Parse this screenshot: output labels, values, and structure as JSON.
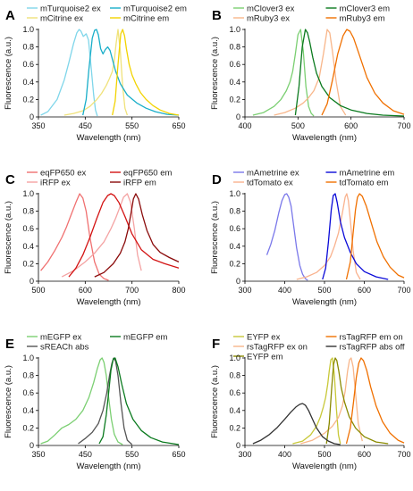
{
  "chart_data": [
    {
      "panel": "A",
      "type": "line",
      "xlabel": "Wavelength (nm)",
      "ylabel": "Fluorescence (a.u.)",
      "xlim": [
        350,
        650
      ],
      "ylim": [
        0,
        1.0
      ],
      "xticks": [
        350,
        450,
        550,
        650
      ],
      "yticks": [
        0,
        0.2,
        0.4,
        0.6,
        0.8,
        1.0
      ],
      "legend_columns": 2,
      "series": [
        {
          "name": "mTurquoise2 ex",
          "color": "#7fd6ea",
          "x": [
            355,
            370,
            390,
            405,
            415,
            425,
            432,
            437,
            441,
            446,
            452,
            457,
            463,
            468,
            472,
            476
          ],
          "y": [
            0.02,
            0.06,
            0.2,
            0.42,
            0.62,
            0.84,
            0.96,
            1.0,
            0.98,
            0.92,
            0.95,
            0.88,
            0.55,
            0.25,
            0.08,
            0.01
          ]
        },
        {
          "name": "mCitrine ex",
          "color": "#f0e27a",
          "x": [
            405,
            425,
            445,
            460,
            475,
            485,
            495,
            502,
            508,
            512,
            516,
            520,
            525,
            530,
            535,
            540
          ],
          "y": [
            0.02,
            0.04,
            0.07,
            0.12,
            0.2,
            0.27,
            0.36,
            0.44,
            0.52,
            0.64,
            0.84,
            1.0,
            0.75,
            0.35,
            0.1,
            0.02
          ]
        },
        {
          "name": "mTurquoise2 em",
          "color": "#19aec9",
          "x": [
            445,
            452,
            458,
            465,
            470,
            474,
            478,
            483,
            488,
            493,
            498,
            503,
            508,
            515,
            525,
            540,
            560,
            580,
            600,
            625,
            650
          ],
          "y": [
            0.02,
            0.2,
            0.55,
            0.9,
            0.99,
            1.0,
            0.94,
            0.78,
            0.72,
            0.77,
            0.8,
            0.76,
            0.66,
            0.52,
            0.38,
            0.25,
            0.16,
            0.1,
            0.06,
            0.03,
            0.02
          ]
        },
        {
          "name": "mCitrine em",
          "color": "#f2d300",
          "x": [
            508,
            514,
            520,
            526,
            530,
            534,
            538,
            544,
            550,
            558,
            568,
            580,
            595,
            610,
            630,
            650
          ],
          "y": [
            0.02,
            0.18,
            0.6,
            0.95,
            1.0,
            0.93,
            0.78,
            0.6,
            0.48,
            0.38,
            0.28,
            0.2,
            0.13,
            0.08,
            0.04,
            0.02
          ]
        }
      ]
    },
    {
      "panel": "B",
      "type": "line",
      "xlabel": "Wavelength (nm)",
      "ylabel": "Fluorescence (a.u.)",
      "xlim": [
        400,
        700
      ],
      "ylim": [
        0,
        1.0
      ],
      "xticks": [
        400,
        500,
        600,
        700
      ],
      "yticks": [
        0,
        0.2,
        0.4,
        0.6,
        0.8,
        1.0
      ],
      "legend_columns": 2,
      "series": [
        {
          "name": "mClover3 ex",
          "color": "#7bcf72",
          "x": [
            415,
            435,
            455,
            468,
            478,
            485,
            490,
            495,
            500,
            505,
            510,
            515,
            520,
            525,
            530
          ],
          "y": [
            0.02,
            0.05,
            0.12,
            0.2,
            0.3,
            0.4,
            0.52,
            0.72,
            0.94,
            1.0,
            0.75,
            0.35,
            0.12,
            0.04,
            0.01
          ]
        },
        {
          "name": "mRuby3 ex",
          "color": "#f8b68a",
          "x": [
            455,
            475,
            495,
            510,
            520,
            530,
            540,
            548,
            555,
            560,
            565,
            572,
            580,
            590
          ],
          "y": [
            0.02,
            0.05,
            0.1,
            0.16,
            0.22,
            0.3,
            0.45,
            0.72,
            1.0,
            0.96,
            0.75,
            0.4,
            0.12,
            0.02
          ]
        },
        {
          "name": "mClover3 em",
          "color": "#0a7a1e",
          "x": [
            495,
            502,
            508,
            514,
            518,
            522,
            528,
            535,
            545,
            560,
            580,
            600,
            630,
            660,
            700
          ],
          "y": [
            0.02,
            0.35,
            0.8,
            1.0,
            0.96,
            0.86,
            0.68,
            0.5,
            0.35,
            0.22,
            0.13,
            0.08,
            0.04,
            0.02,
            0.01
          ]
        },
        {
          "name": "mRuby3 em",
          "color": "#f07000",
          "x": [
            545,
            555,
            565,
            575,
            585,
            592,
            598,
            605,
            615,
            630,
            645,
            660,
            680,
            700
          ],
          "y": [
            0.02,
            0.15,
            0.42,
            0.72,
            0.93,
            1.0,
            0.98,
            0.9,
            0.72,
            0.45,
            0.27,
            0.16,
            0.07,
            0.03
          ]
        }
      ]
    },
    {
      "panel": "C",
      "type": "line",
      "xlabel": "Wavelength (nm)",
      "ylabel": "Fluorescence (a.u.)",
      "xlim": [
        500,
        800
      ],
      "ylim": [
        0,
        1.0
      ],
      "xticks": [
        500,
        600,
        700,
        800
      ],
      "yticks": [
        0,
        0.2,
        0.4,
        0.6,
        0.8,
        1.0
      ],
      "legend_columns": 2,
      "series": [
        {
          "name": "eqFP650 ex",
          "color": "#f07070",
          "x": [
            505,
            520,
            535,
            550,
            560,
            570,
            580,
            588,
            595,
            602,
            610,
            620,
            630,
            640,
            650
          ],
          "y": [
            0.12,
            0.22,
            0.35,
            0.5,
            0.62,
            0.76,
            0.9,
            1.0,
            0.95,
            0.8,
            0.5,
            0.22,
            0.08,
            0.03,
            0.01
          ]
        },
        {
          "name": "iRFP ex",
          "color": "#f4a3a3",
          "x": [
            550,
            575,
            600,
            620,
            640,
            655,
            665,
            675,
            682,
            690,
            697,
            705,
            712,
            720
          ],
          "y": [
            0.05,
            0.12,
            0.22,
            0.32,
            0.45,
            0.6,
            0.72,
            0.86,
            0.96,
            1.0,
            0.9,
            0.6,
            0.3,
            0.12
          ]
        },
        {
          "name": "eqFP650 em",
          "color": "#d31313",
          "x": [
            565,
            580,
            595,
            610,
            625,
            638,
            648,
            655,
            662,
            672,
            685,
            700,
            720,
            745,
            770,
            800
          ],
          "y": [
            0.05,
            0.15,
            0.3,
            0.5,
            0.72,
            0.9,
            0.98,
            1.0,
            0.98,
            0.9,
            0.74,
            0.54,
            0.36,
            0.25,
            0.2,
            0.15
          ]
        },
        {
          "name": "iRFP em",
          "color": "#8a0a0a",
          "x": [
            620,
            640,
            660,
            675,
            685,
            692,
            698,
            703,
            708,
            714,
            722,
            732,
            745,
            760,
            780,
            800
          ],
          "y": [
            0.05,
            0.1,
            0.2,
            0.32,
            0.45,
            0.6,
            0.78,
            0.94,
            1.0,
            0.94,
            0.76,
            0.58,
            0.42,
            0.33,
            0.27,
            0.22
          ]
        }
      ]
    },
    {
      "panel": "D",
      "type": "line",
      "xlabel": "Wavelength (nm)",
      "ylabel": "Fluorescence (a.u.)",
      "xlim": [
        300,
        700
      ],
      "ylim": [
        0,
        1.0
      ],
      "xticks": [
        300,
        400,
        500,
        600,
        700
      ],
      "yticks": [
        0,
        0.2,
        0.4,
        0.6,
        0.8,
        1.0
      ],
      "legend_columns": 2,
      "series": [
        {
          "name": "mAmetrine ex",
          "color": "#7a78ea",
          "x": [
            355,
            365,
            375,
            385,
            393,
            400,
            405,
            410,
            416,
            422,
            430,
            438,
            445,
            452,
            458
          ],
          "y": [
            0.3,
            0.42,
            0.58,
            0.78,
            0.92,
            0.99,
            1.0,
            0.96,
            0.86,
            0.65,
            0.38,
            0.18,
            0.08,
            0.03,
            0.01
          ]
        },
        {
          "name": "tdTomato ex",
          "color": "#f9b28e",
          "x": [
            430,
            455,
            480,
            500,
            515,
            525,
            535,
            545,
            552,
            556,
            560,
            565,
            572,
            580,
            590
          ],
          "y": [
            0.02,
            0.05,
            0.1,
            0.18,
            0.28,
            0.4,
            0.55,
            0.78,
            0.96,
            1.0,
            0.92,
            0.7,
            0.35,
            0.1,
            0.02
          ]
        },
        {
          "name": "mAmetrine em",
          "color": "#0a0ad8",
          "x": [
            495,
            503,
            510,
            517,
            522,
            527,
            532,
            540,
            550,
            565,
            580,
            600,
            630,
            660
          ],
          "y": [
            0.02,
            0.15,
            0.45,
            0.82,
            0.98,
            1.0,
            0.9,
            0.68,
            0.5,
            0.33,
            0.2,
            0.11,
            0.05,
            0.02
          ]
        },
        {
          "name": "tdTomato em",
          "color": "#f07000",
          "x": [
            555,
            565,
            572,
            578,
            583,
            588,
            595,
            605,
            618,
            632,
            648,
            665,
            685,
            700
          ],
          "y": [
            0.02,
            0.22,
            0.55,
            0.82,
            0.96,
            1.0,
            0.97,
            0.86,
            0.66,
            0.45,
            0.28,
            0.16,
            0.07,
            0.04
          ]
        }
      ]
    },
    {
      "panel": "E",
      "type": "line",
      "xlabel": "Wavelength (nm)",
      "ylabel": "Fluorescence (a.u.)",
      "xlim": [
        350,
        650
      ],
      "ylim": [
        0,
        1.0
      ],
      "xticks": [
        350,
        450,
        550,
        650
      ],
      "yticks": [
        0,
        0.2,
        0.4,
        0.6,
        0.8,
        1.0
      ],
      "legend_columns": 2,
      "series": [
        {
          "name": "mEGFP ex",
          "color": "#7bcf72",
          "x": [
            355,
            370,
            385,
            400,
            415,
            430,
            445,
            458,
            468,
            476,
            482,
            486,
            490,
            495,
            500,
            506,
            512,
            520,
            530
          ],
          "y": [
            0.02,
            0.05,
            0.12,
            0.2,
            0.24,
            0.3,
            0.4,
            0.55,
            0.72,
            0.88,
            0.98,
            1.0,
            0.95,
            0.8,
            0.55,
            0.3,
            0.13,
            0.04,
            0.01
          ]
        },
        {
          "name": "sREACh abs",
          "color": "#555555",
          "x": [
            435,
            450,
            465,
            478,
            488,
            496,
            502,
            507,
            511,
            515,
            520,
            526,
            533,
            540,
            550
          ],
          "y": [
            0.02,
            0.08,
            0.15,
            0.25,
            0.4,
            0.6,
            0.8,
            0.94,
            1.0,
            0.96,
            0.8,
            0.5,
            0.2,
            0.06,
            0.01
          ]
        },
        {
          "name": "mEGFP em",
          "color": "#0a7a1e",
          "x": [
            480,
            488,
            495,
            500,
            505,
            510,
            514,
            520,
            528,
            538,
            552,
            570,
            590,
            615,
            650
          ],
          "y": [
            0.02,
            0.1,
            0.35,
            0.6,
            0.86,
            0.99,
            1.0,
            0.9,
            0.7,
            0.48,
            0.3,
            0.17,
            0.09,
            0.04,
            0.01
          ]
        }
      ]
    },
    {
      "panel": "F",
      "type": "line",
      "xlabel": "Wavelength (nm)",
      "ylabel": "Fluorescence (a.u.)",
      "xlim": [
        300,
        700
      ],
      "ylim": [
        0,
        1.0
      ],
      "xticks": [
        300,
        400,
        500,
        600,
        700
      ],
      "yticks": [
        0,
        0.2,
        0.4,
        0.6,
        0.8,
        1.0
      ],
      "legend_columns": 2,
      "series": [
        {
          "name": "EYFP ex",
          "color": "#c8c838",
          "x": [
            420,
            445,
            465,
            480,
            490,
            497,
            503,
            508,
            512,
            516,
            520,
            525,
            530,
            535,
            540
          ],
          "y": [
            0.02,
            0.05,
            0.12,
            0.22,
            0.33,
            0.44,
            0.55,
            0.7,
            0.85,
            0.98,
            1.0,
            0.8,
            0.42,
            0.12,
            0.02
          ]
        },
        {
          "name": "rsTagRFP ex on",
          "color": "#f8b68a",
          "x": [
            440,
            470,
            500,
            520,
            535,
            545,
            552,
            558,
            563,
            567,
            572,
            578,
            585,
            595
          ],
          "y": [
            0.02,
            0.06,
            0.14,
            0.22,
            0.32,
            0.45,
            0.62,
            0.85,
            0.98,
            1.0,
            0.9,
            0.6,
            0.25,
            0.05
          ]
        },
        {
          "name": "EYFP em",
          "color": "#8a8a00",
          "x": [
            505,
            512,
            518,
            523,
            527,
            531,
            536,
            542,
            550,
            562,
            578,
            600,
            630,
            660
          ],
          "y": [
            0.02,
            0.25,
            0.65,
            0.93,
            1.0,
            0.97,
            0.85,
            0.66,
            0.5,
            0.33,
            0.2,
            0.1,
            0.04,
            0.02
          ]
        },
        {
          "name": "rsTagRFP em on",
          "color": "#f07000",
          "x": [
            555,
            565,
            573,
            580,
            586,
            592,
            598,
            606,
            616,
            630,
            646,
            665,
            685,
            700
          ],
          "y": [
            0.02,
            0.2,
            0.5,
            0.78,
            0.94,
            1.0,
            0.97,
            0.86,
            0.67,
            0.45,
            0.27,
            0.14,
            0.06,
            0.03
          ]
        },
        {
          "name": "rsTagRFP abs off",
          "color": "#333333",
          "x": [
            320,
            340,
            360,
            380,
            400,
            415,
            428,
            438,
            445,
            452,
            460,
            470,
            480,
            495,
            510,
            525,
            540
          ],
          "y": [
            0.02,
            0.06,
            0.12,
            0.2,
            0.3,
            0.38,
            0.44,
            0.47,
            0.48,
            0.46,
            0.4,
            0.3,
            0.2,
            0.1,
            0.05,
            0.02,
            0.01
          ]
        }
      ]
    }
  ]
}
